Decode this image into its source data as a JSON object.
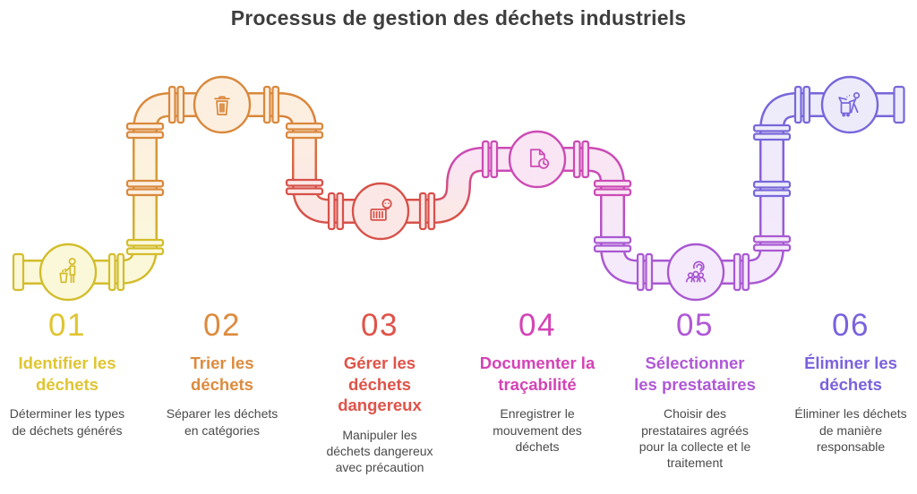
{
  "title": "Processus de gestion des déchets industriels",
  "palette": {
    "title_color": "#3e3e3e",
    "body_text": "#4a4a4a",
    "step1_stroke": "#d3bd2b",
    "step1_fill": "#fbf8da",
    "step1_text": "#e0c530",
    "step2_stroke": "#d9883c",
    "step2_fill": "#fcefe0",
    "step2_text": "#dd8b3e",
    "step3_stroke": "#d7514a",
    "step3_fill": "#fbe8e6",
    "step3_text": "#df5349",
    "step4_stroke": "#cc4ab4",
    "step4_fill": "#f9e5f4",
    "step4_text": "#d443b6",
    "step5_stroke": "#a958d2",
    "step5_fill": "#f5eafb",
    "step5_text": "#b058d6",
    "step6_stroke": "#7767da",
    "step6_fill": "#edebfa",
    "step6_text": "#7a62dd"
  },
  "steps": [
    {
      "number": "01",
      "icon": "person-littering-icon",
      "title": "Identifier les\ndéchets",
      "description": "Déterminer les types\nde déchets générés"
    },
    {
      "number": "02",
      "icon": "trash-can-icon",
      "title": "Trier les\ndéchets",
      "description": "Séparer les déchets\nen catégories"
    },
    {
      "number": "03",
      "icon": "hazard-barrel-skull-icon",
      "title": "Gérer les\ndéchets\ndangereux",
      "description": "Manipuler les\ndéchets dangereux\navec précaution"
    },
    {
      "number": "04",
      "icon": "document-clock-icon",
      "title": "Documenter la\ntraçabilité",
      "description": "Enregistrer le\nmouvement des\ndéchets"
    },
    {
      "number": "05",
      "icon": "team-selection-icon",
      "title": "Sélectionner\nles prestataires",
      "description": "Choisir des\nprestataires agréés\npour la collecte et le\ntraitement"
    },
    {
      "number": "06",
      "icon": "wheelie-bin-person-icon",
      "title": "Éliminer les\ndéchets",
      "description": "Éliminer les déchets\nde manière\nresponsable"
    }
  ]
}
